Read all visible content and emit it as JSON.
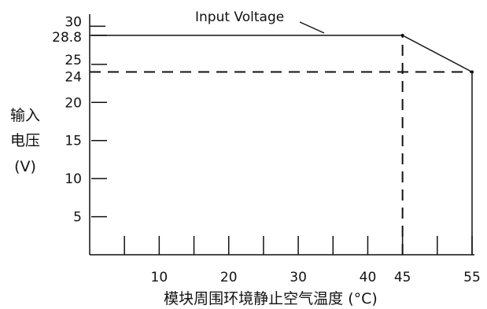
{
  "chart_data": {
    "type": "line",
    "annotation": "Input Voltage",
    "xlabel": "模块周围环境静止空气温度 (°C)",
    "ylabel_lines": [
      "输入",
      "电压",
      "(V)"
    ],
    "xlim": [
      0,
      55
    ],
    "ylim": [
      0,
      30
    ],
    "x_ticks": [
      5,
      10,
      15,
      20,
      25,
      30,
      35,
      40,
      45,
      50,
      55
    ],
    "x_tick_labels": [
      {
        "value": 10,
        "label": "10"
      },
      {
        "value": 20,
        "label": "20"
      },
      {
        "value": 30,
        "label": "30"
      },
      {
        "value": 40,
        "label": "40"
      },
      {
        "value": 45,
        "label": "45"
      },
      {
        "value": 55,
        "label": "55"
      }
    ],
    "y_ticks": [
      5,
      10,
      15,
      20,
      25,
      28.8,
      30
    ],
    "y_tick_labels": [
      {
        "value": 5,
        "label": "5"
      },
      {
        "value": 10,
        "label": "10"
      },
      {
        "value": 15,
        "label": "15"
      },
      {
        "value": 20,
        "label": "20"
      },
      {
        "value": 25,
        "label": "25"
      },
      {
        "value": 28.8,
        "label": "28.8"
      },
      {
        "value": 24,
        "label": "24"
      },
      {
        "value": 30,
        "label": "30"
      }
    ],
    "series": [
      {
        "x": [
          0,
          45,
          55
        ],
        "y": [
          28.8,
          28.8,
          24
        ],
        "style": "solid"
      }
    ],
    "reference_lines": [
      {
        "orientation": "horizontal",
        "value": 24,
        "from": 0,
        "to": 55,
        "style": "dashed"
      },
      {
        "orientation": "vertical",
        "value": 45,
        "from": 0,
        "to": 28.8,
        "style": "dashed"
      },
      {
        "orientation": "vertical",
        "value": 55,
        "from": 0,
        "to": 24,
        "style": "solid"
      }
    ],
    "grid": false,
    "colors": {
      "line": "#111111",
      "background": "#ffffff"
    }
  }
}
